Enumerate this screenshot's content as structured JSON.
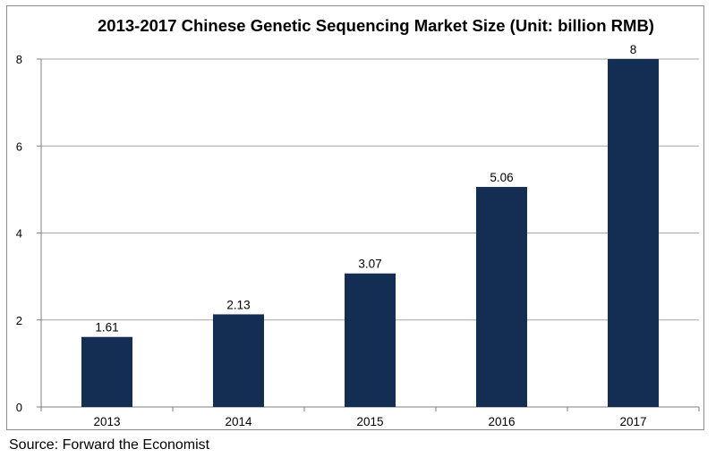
{
  "chart_data": {
    "type": "bar",
    "title": "2013-2017 Chinese Genetic Sequencing Market Size (Unit: billion RMB)",
    "categories": [
      "2013",
      "2014",
      "2015",
      "2016",
      "2017"
    ],
    "values": [
      1.61,
      2.13,
      3.07,
      5.06,
      8
    ],
    "data_labels": [
      "1.61",
      "2.13",
      "3.07",
      "5.06",
      "8"
    ],
    "xlabel": "",
    "ylabel": "",
    "ylim": [
      0,
      8
    ],
    "yticks": [
      0,
      2,
      4,
      6,
      8
    ],
    "grid": true,
    "legend": "none",
    "bar_color": "#142d52"
  },
  "source": "Source: Forward the Economist"
}
